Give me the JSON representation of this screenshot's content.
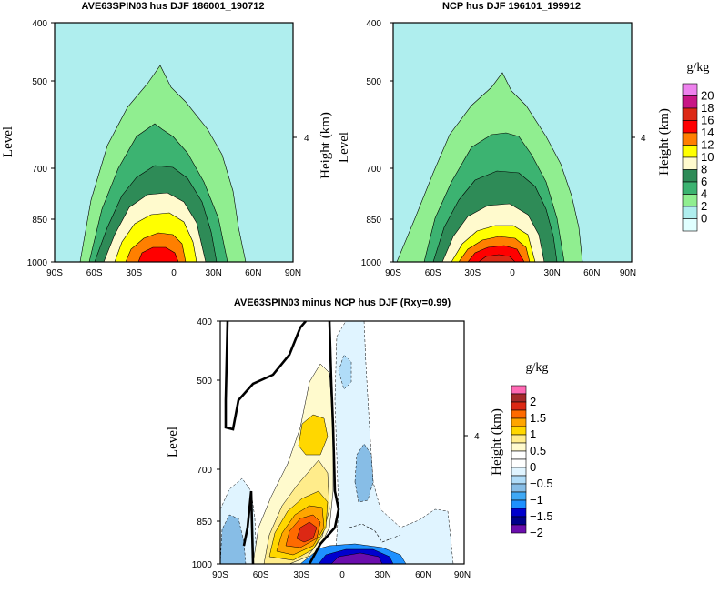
{
  "chart_data": [
    {
      "type": "heatmap",
      "title": "AVE63SPIN03 hus DJF 186001_190712",
      "xlabel": "",
      "ylabel": "Level",
      "y2label": "Height (km)",
      "xticks": [
        "90S",
        "60S",
        "30S",
        "0",
        "30N",
        "60N",
        "90N"
      ],
      "xlim": [
        -90,
        90
      ],
      "yticks": [
        "400",
        "500",
        "700",
        "850",
        "1000"
      ],
      "ylim": [
        1000,
        400
      ],
      "y2ticks": [
        "4"
      ],
      "contour_levels": [
        2,
        4,
        6,
        8,
        10,
        12,
        14,
        16
      ],
      "approx_peak_latitude": -8,
      "approx_max_value": 16
    },
    {
      "type": "heatmap",
      "title": "NCP hus DJF 196101_199912",
      "xlabel": "",
      "ylabel": "Level",
      "y2label": "Height (km)",
      "xticks": [
        "90S",
        "60S",
        "30S",
        "0",
        "30N",
        "60N",
        "90N"
      ],
      "xlim": [
        -90,
        90
      ],
      "yticks": [
        "400",
        "500",
        "700",
        "850",
        "1000"
      ],
      "ylim": [
        1000,
        400
      ],
      "y2ticks": [
        "4"
      ],
      "contour_levels": [
        2,
        4,
        6,
        8,
        10,
        12,
        14,
        16
      ],
      "approx_peak_latitude": -5,
      "approx_max_value": 16
    },
    {
      "type": "heatmap",
      "title": "AVE63SPIN03 minus NCP hus DJF (Rxy=0.99)",
      "xlabel": "",
      "ylabel": "Level",
      "y2label": "Height (km)",
      "xticks": [
        "90S",
        "60S",
        "30S",
        "0",
        "30N",
        "60N",
        "90N"
      ],
      "xlim": [
        -90,
        90
      ],
      "yticks": [
        "400",
        "500",
        "700",
        "850",
        "1000"
      ],
      "ylim": [
        1000,
        400
      ],
      "y2ticks": [
        "4"
      ],
      "contour_levels": [
        -2,
        -1.75,
        -1.5,
        -1.25,
        -1,
        -0.75,
        -0.5,
        -0.25,
        0,
        0.25,
        0.5,
        0.75,
        1,
        1.25,
        1.5,
        1.75,
        2
      ],
      "positive_anomaly_center": {
        "lat": -27,
        "level": 860,
        "approx_value": 1.75
      },
      "negative_anomaly_center": {
        "lat": 12,
        "level": 990,
        "approx_value": -2
      }
    }
  ],
  "colorbar_top": {
    "unit": "g/kg",
    "labels": [
      "20",
      "18",
      "16",
      "14",
      "12",
      "10",
      "8",
      "6",
      "4",
      "2",
      "0"
    ],
    "colors": [
      "#ee82ee",
      "#c71585",
      "#dc2814",
      "#ff0000",
      "#ff7f00",
      "#ffff00",
      "#fffacd",
      "#2e8b57",
      "#3cb371",
      "#90ee90",
      "#afeeee",
      "#e0ffff"
    ]
  },
  "colorbar_bottom": {
    "unit": "g/kg",
    "labels": [
      "2",
      "1.5",
      "1",
      "0.5",
      "0",
      "−0.5",
      "−1",
      "−1.5",
      "−2"
    ],
    "colors": [
      "#ff69b4",
      "#a52a2a",
      "#dc2814",
      "#ff6a00",
      "#ffa500",
      "#ffd700",
      "#ffec8b",
      "#fffacd",
      "#ffffff",
      "#ffffff",
      "#e0f4ff",
      "#b0dcf8",
      "#87bde6",
      "#3fa9f5",
      "#1e90ff",
      "#0000cd",
      "#00008b",
      "#6a0dad"
    ]
  },
  "colors": {
    "background_fill": "#afeeee",
    "frame": "#000000"
  }
}
